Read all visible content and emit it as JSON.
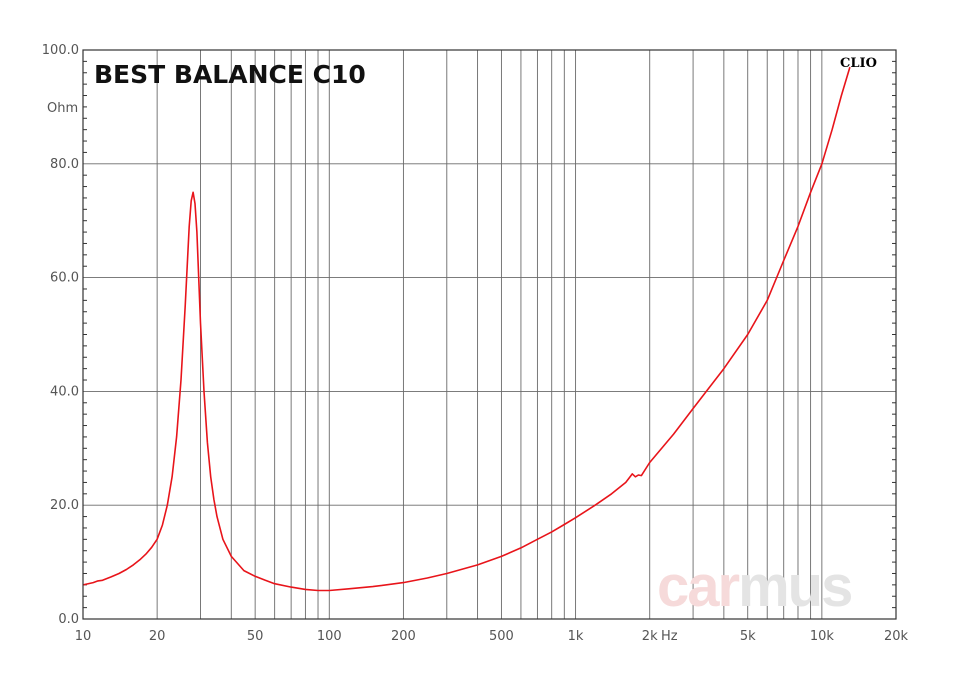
{
  "chart_data": {
    "type": "line",
    "title": "BEST BALANCE C10",
    "ylabel": "Ohm",
    "xlabel": "Hz",
    "x_scale": "log",
    "xlim": [
      10,
      20000
    ],
    "ylim": [
      0,
      100
    ],
    "grid": true,
    "y_ticks": [
      {
        "value": 0,
        "label": "0.0"
      },
      {
        "value": 20,
        "label": "20.0"
      },
      {
        "value": 40,
        "label": "40.0"
      },
      {
        "value": 60,
        "label": "60.0"
      },
      {
        "value": 80,
        "label": "80.0"
      },
      {
        "value": 100,
        "label": "100.0"
      }
    ],
    "x_ticks": [
      {
        "value": 10,
        "label": "10"
      },
      {
        "value": 20,
        "label": "20"
      },
      {
        "value": 50,
        "label": "50"
      },
      {
        "value": 100,
        "label": "100"
      },
      {
        "value": 200,
        "label": "200"
      },
      {
        "value": 500,
        "label": "500"
      },
      {
        "value": 1000,
        "label": "1k"
      },
      {
        "value": 2000,
        "label": "2k"
      },
      {
        "value": 5000,
        "label": "5k"
      },
      {
        "value": 10000,
        "label": "10k"
      },
      {
        "value": 20000,
        "label": "20k"
      }
    ],
    "series": [
      {
        "color": "#e8141a",
        "x": [
          10,
          11,
          11.5,
          12,
          13,
          14,
          15,
          16,
          17,
          18,
          19,
          20,
          21,
          22,
          23,
          24,
          25,
          26,
          26.5,
          27,
          27.5,
          28,
          28.5,
          29,
          29.5,
          30,
          31,
          32,
          33,
          34,
          35,
          37,
          40,
          45,
          50,
          55,
          60,
          70,
          80,
          90,
          100,
          120,
          150,
          200,
          250,
          300,
          400,
          500,
          600,
          700,
          800,
          900,
          1000,
          1200,
          1400,
          1600,
          1700,
          1750,
          1800,
          1850,
          2000,
          2500,
          3000,
          4000,
          5000,
          6000,
          7000,
          8000,
          9000,
          10000,
          11000,
          12000,
          13000
        ],
        "y": [
          6.0,
          6.4,
          6.7,
          6.8,
          7.4,
          8.0,
          8.7,
          9.5,
          10.4,
          11.4,
          12.6,
          14.0,
          16.5,
          20.0,
          25.0,
          32.0,
          42.0,
          55.0,
          62.0,
          69.0,
          73.5,
          75.0,
          73.0,
          68.0,
          60.0,
          52.0,
          40.0,
          31.0,
          25.0,
          21.0,
          18.0,
          14.0,
          11.0,
          8.5,
          7.5,
          6.8,
          6.2,
          5.6,
          5.2,
          5.0,
          5.0,
          5.3,
          5.7,
          6.4,
          7.2,
          8.0,
          9.5,
          11.0,
          12.5,
          14.0,
          15.3,
          16.6,
          17.8,
          20.0,
          22.0,
          24.0,
          25.5,
          25.0,
          25.3,
          25.2,
          27.5,
          32.5,
          37.0,
          44.0,
          50.0,
          56.0,
          63.0,
          69.0,
          75.0,
          80.0,
          86.0,
          92.0,
          97.0
        ]
      }
    ]
  },
  "brand": "CLIO",
  "watermark": {
    "part1": "car",
    "part2": "mus"
  }
}
